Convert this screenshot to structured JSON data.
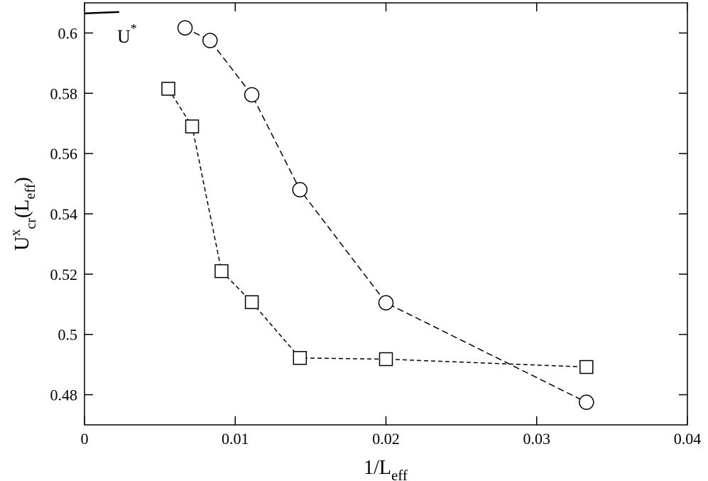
{
  "chart_data": {
    "type": "line",
    "xlabel": {
      "base": "1/L",
      "sub": "eff"
    },
    "ylabel": {
      "base": "U",
      "sup": "x",
      "sub": "cr",
      "rest": "(L",
      "rest_sub": "eff",
      "close": ")"
    },
    "xlim": [
      0,
      0.04
    ],
    "xticks": [
      0,
      0.01,
      0.02,
      0.03,
      0.04
    ],
    "ylim": [
      0.47,
      0.61
    ],
    "yticks": [
      0.48,
      0.5,
      0.52,
      0.54,
      0.56,
      0.58,
      0.6
    ],
    "series": [
      {
        "marker": "circle",
        "dash": "long",
        "color": "#000000",
        "x": [
          0.00667,
          0.00833,
          0.0111,
          0.01429,
          0.02,
          0.0333
        ],
        "values": [
          0.6017,
          0.5975,
          0.5795,
          0.548,
          0.5105,
          0.4775
        ]
      },
      {
        "marker": "square",
        "dash": "short",
        "color": "#000000",
        "x": [
          0.00556,
          0.00714,
          0.00909,
          0.0111,
          0.01429,
          0.02,
          0.0333
        ],
        "values": [
          0.5815,
          0.569,
          0.521,
          0.5107,
          0.4922,
          0.4918,
          0.4892
        ]
      }
    ],
    "annotations": [
      {
        "text": "U",
        "sup": "*",
        "x": 0,
        "x_end": 0.0023,
        "y": 0.6065
      }
    ]
  }
}
